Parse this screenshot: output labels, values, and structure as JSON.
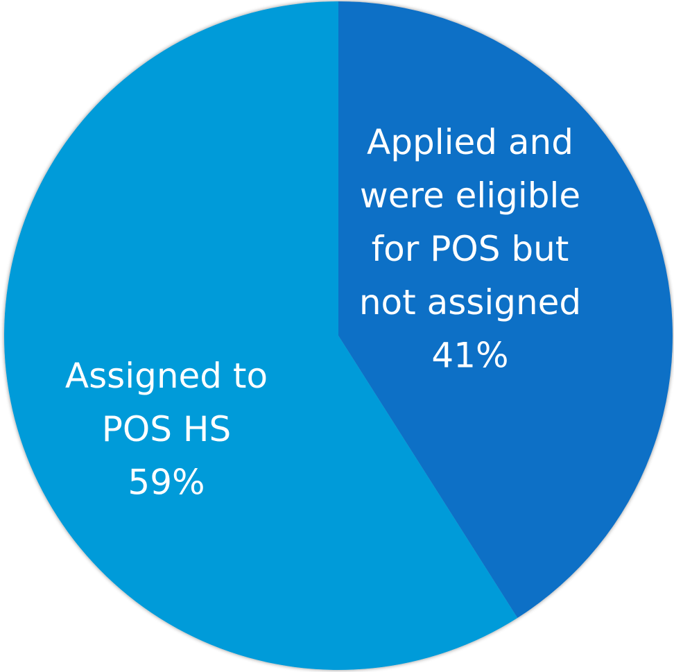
{
  "chart_data": {
    "type": "pie",
    "categories": [
      "Applied and were eligible for POS but not assigned",
      "Assigned to POS HS"
    ],
    "values": [
      41,
      59
    ],
    "value_labels": [
      "41%",
      "59%"
    ],
    "colors": [
      "#1170c6",
      "#009bd9"
    ]
  }
}
